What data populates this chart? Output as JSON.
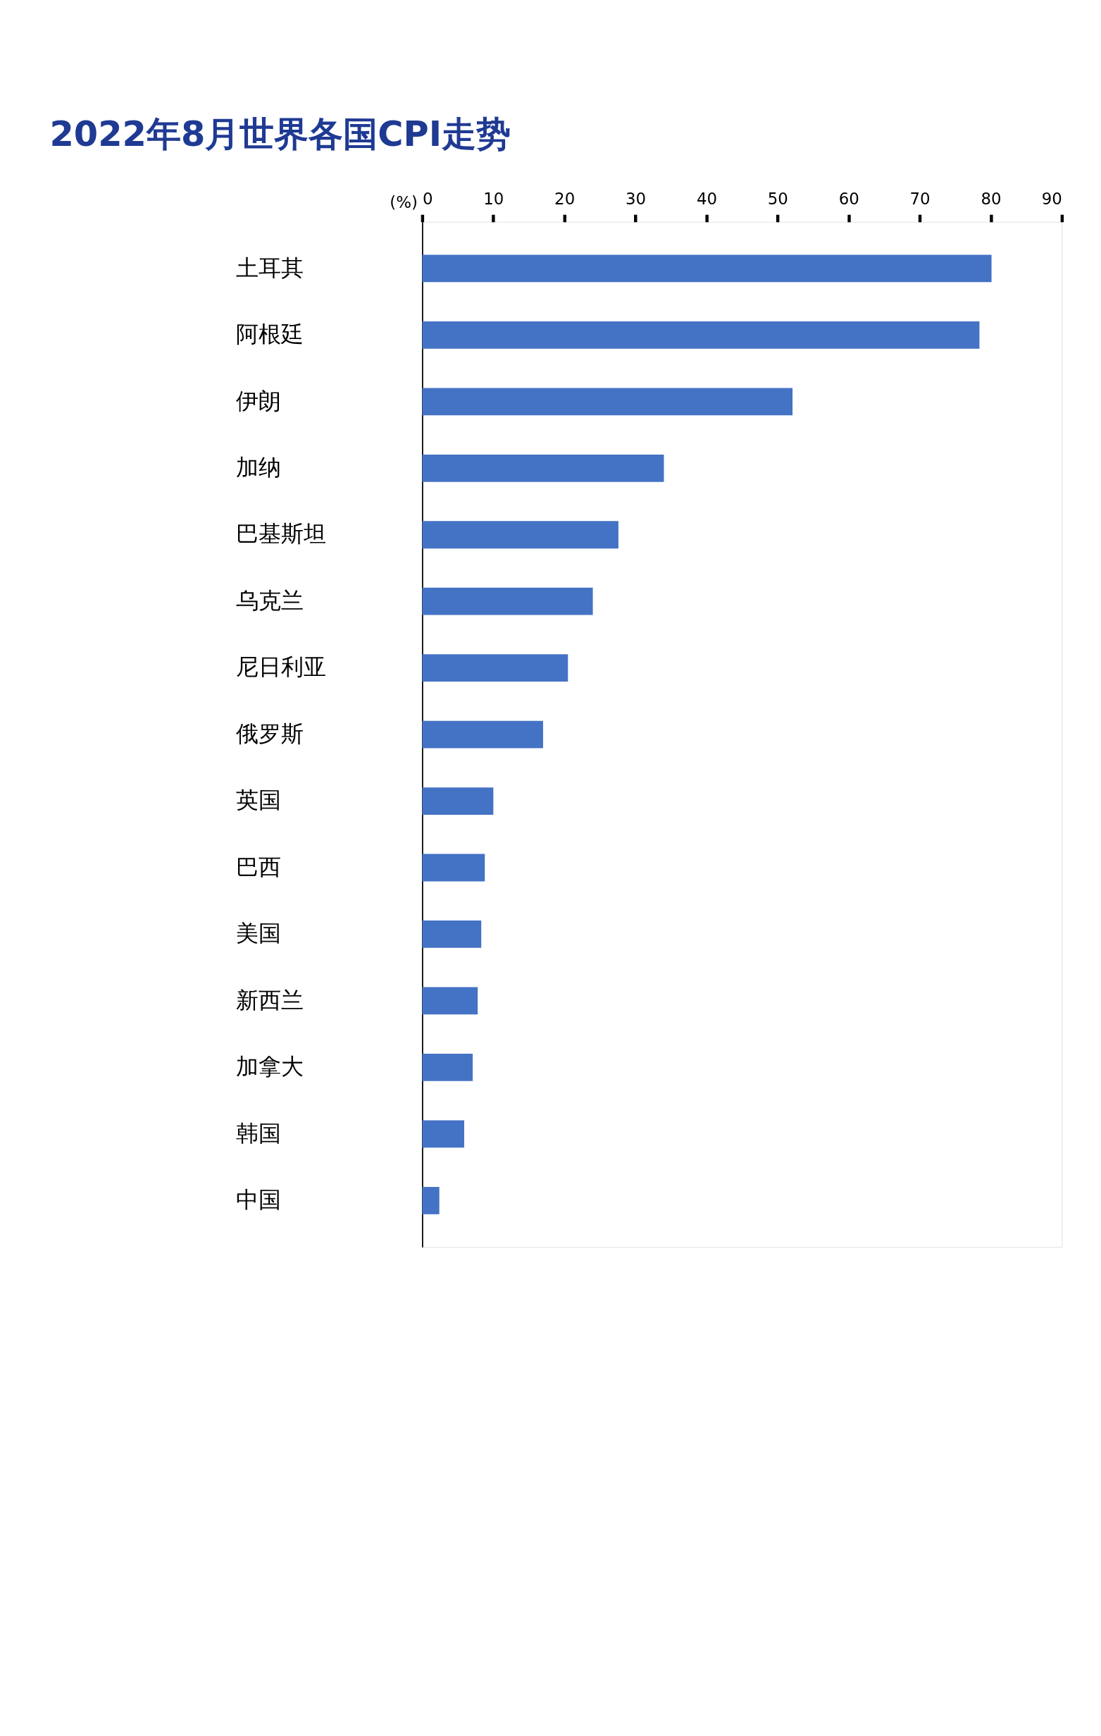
{
  "chart_data": {
    "type": "bar",
    "orientation": "horizontal",
    "title": "2022年8月世界各国CPI走势",
    "xlabel": "(%)",
    "categories": [
      "土耳其",
      "阿根廷",
      "伊朗",
      "加纳",
      "巴基斯坦",
      "乌克兰",
      "尼日利亚",
      "俄罗斯",
      "英国",
      "巴西",
      "美国",
      "新西兰",
      "加拿大",
      "韩国",
      "中国"
    ],
    "values": [
      80.1,
      78.4,
      52.1,
      34.0,
      27.6,
      24.0,
      20.5,
      17.0,
      10.0,
      8.8,
      8.3,
      7.8,
      7.1,
      5.9,
      2.4
    ],
    "color": "#4472c4",
    "xlim": [
      0,
      90
    ],
    "xticks": [
      0,
      10,
      20,
      30,
      40,
      50,
      60,
      70,
      80,
      90
    ],
    "grid": false
  }
}
